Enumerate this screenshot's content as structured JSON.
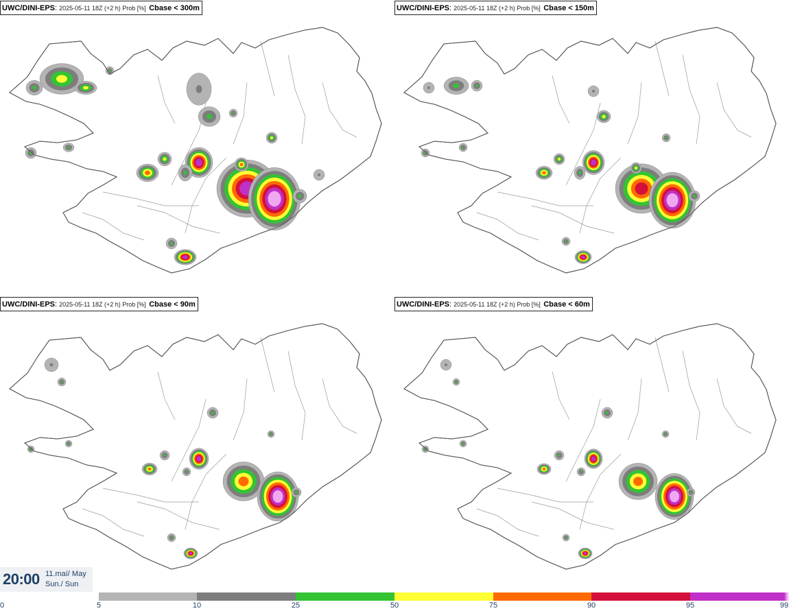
{
  "panels": [
    {
      "model": "UWC/DINI-EPS",
      "info": "2025-05-11 18Z (+2 h) Prob [%]",
      "level": "Cbase < 300m"
    },
    {
      "model": "UWC/DINI-EPS",
      "info": "2025-05-11 18Z (+2 h) Prob [%]",
      "level": "Cbase < 150m"
    },
    {
      "model": "UWC/DINI-EPS",
      "info": "2025-05-11 18Z (+2 h) Prob [%]",
      "level": "Cbase < 90m"
    },
    {
      "model": "UWC/DINI-EPS",
      "info": "2025-05-11 18Z (+2 h) Prob [%]",
      "level": "Cbase < 60m"
    }
  ],
  "time": {
    "main": "20:00",
    "date": "11.maí/ May",
    "day": "Sun./ Sun"
  },
  "legend": {
    "ticks": [
      "0",
      "5",
      "10",
      "25",
      "50",
      "75",
      "90",
      "95",
      "99"
    ],
    "classes": [
      {
        "from": "5",
        "to": "10",
        "color": "#b4b4b4"
      },
      {
        "from": "10",
        "to": "25",
        "color": "#7d7d7d"
      },
      {
        "from": "25",
        "to": "50",
        "color": "#33c333"
      },
      {
        "from": "50",
        "to": "75",
        "color": "#ffff33"
      },
      {
        "from": "75",
        "to": "90",
        "color": "#ff6a00"
      },
      {
        "from": "90",
        "to": "95",
        "color": "#d4103a"
      },
      {
        "from": "95",
        "to": "99",
        "color": "#c030c8"
      },
      {
        "from": "99",
        "to": "",
        "color": "#f0a8f0"
      }
    ]
  },
  "map": {
    "region": "Iceland",
    "coastline_color": "#555555"
  }
}
